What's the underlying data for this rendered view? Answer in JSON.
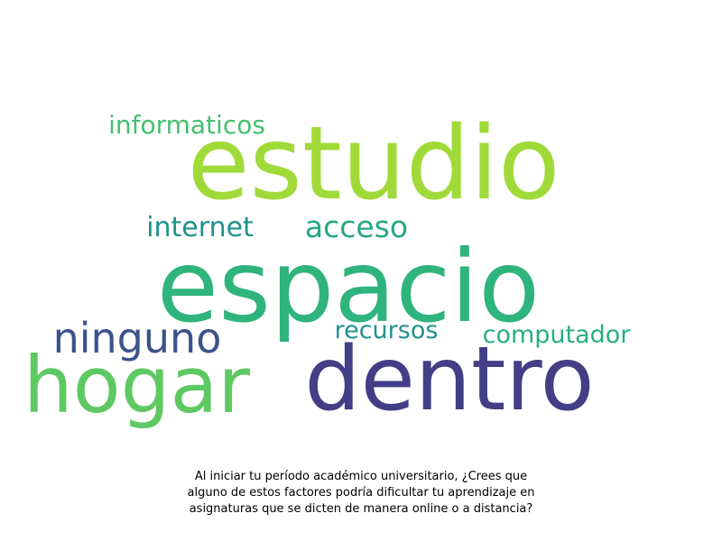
{
  "wordcloud": {
    "words": [
      {
        "text": "estudio",
        "color": "#a0da39"
      },
      {
        "text": "espacio",
        "color": "#2fb47c"
      },
      {
        "text": "dentro",
        "color": "#433e85"
      },
      {
        "text": "hogar",
        "color": "#5ec962"
      },
      {
        "text": "ninguno",
        "color": "#3b528b"
      },
      {
        "text": "acceso",
        "color": "#26a784"
      },
      {
        "text": "internet",
        "color": "#21918c"
      },
      {
        "text": "informaticos",
        "color": "#44bf70"
      },
      {
        "text": "recursos",
        "color": "#21918c"
      },
      {
        "text": "computador",
        "color": "#29af7f"
      }
    ]
  },
  "caption": {
    "line1": "Al iniciar tu período académico universitario, ¿Crees que",
    "line2": "alguno de estos factores podría dificultar tu aprendizaje en",
    "line3": "asignaturas que se dicten de manera online o a distancia?"
  }
}
